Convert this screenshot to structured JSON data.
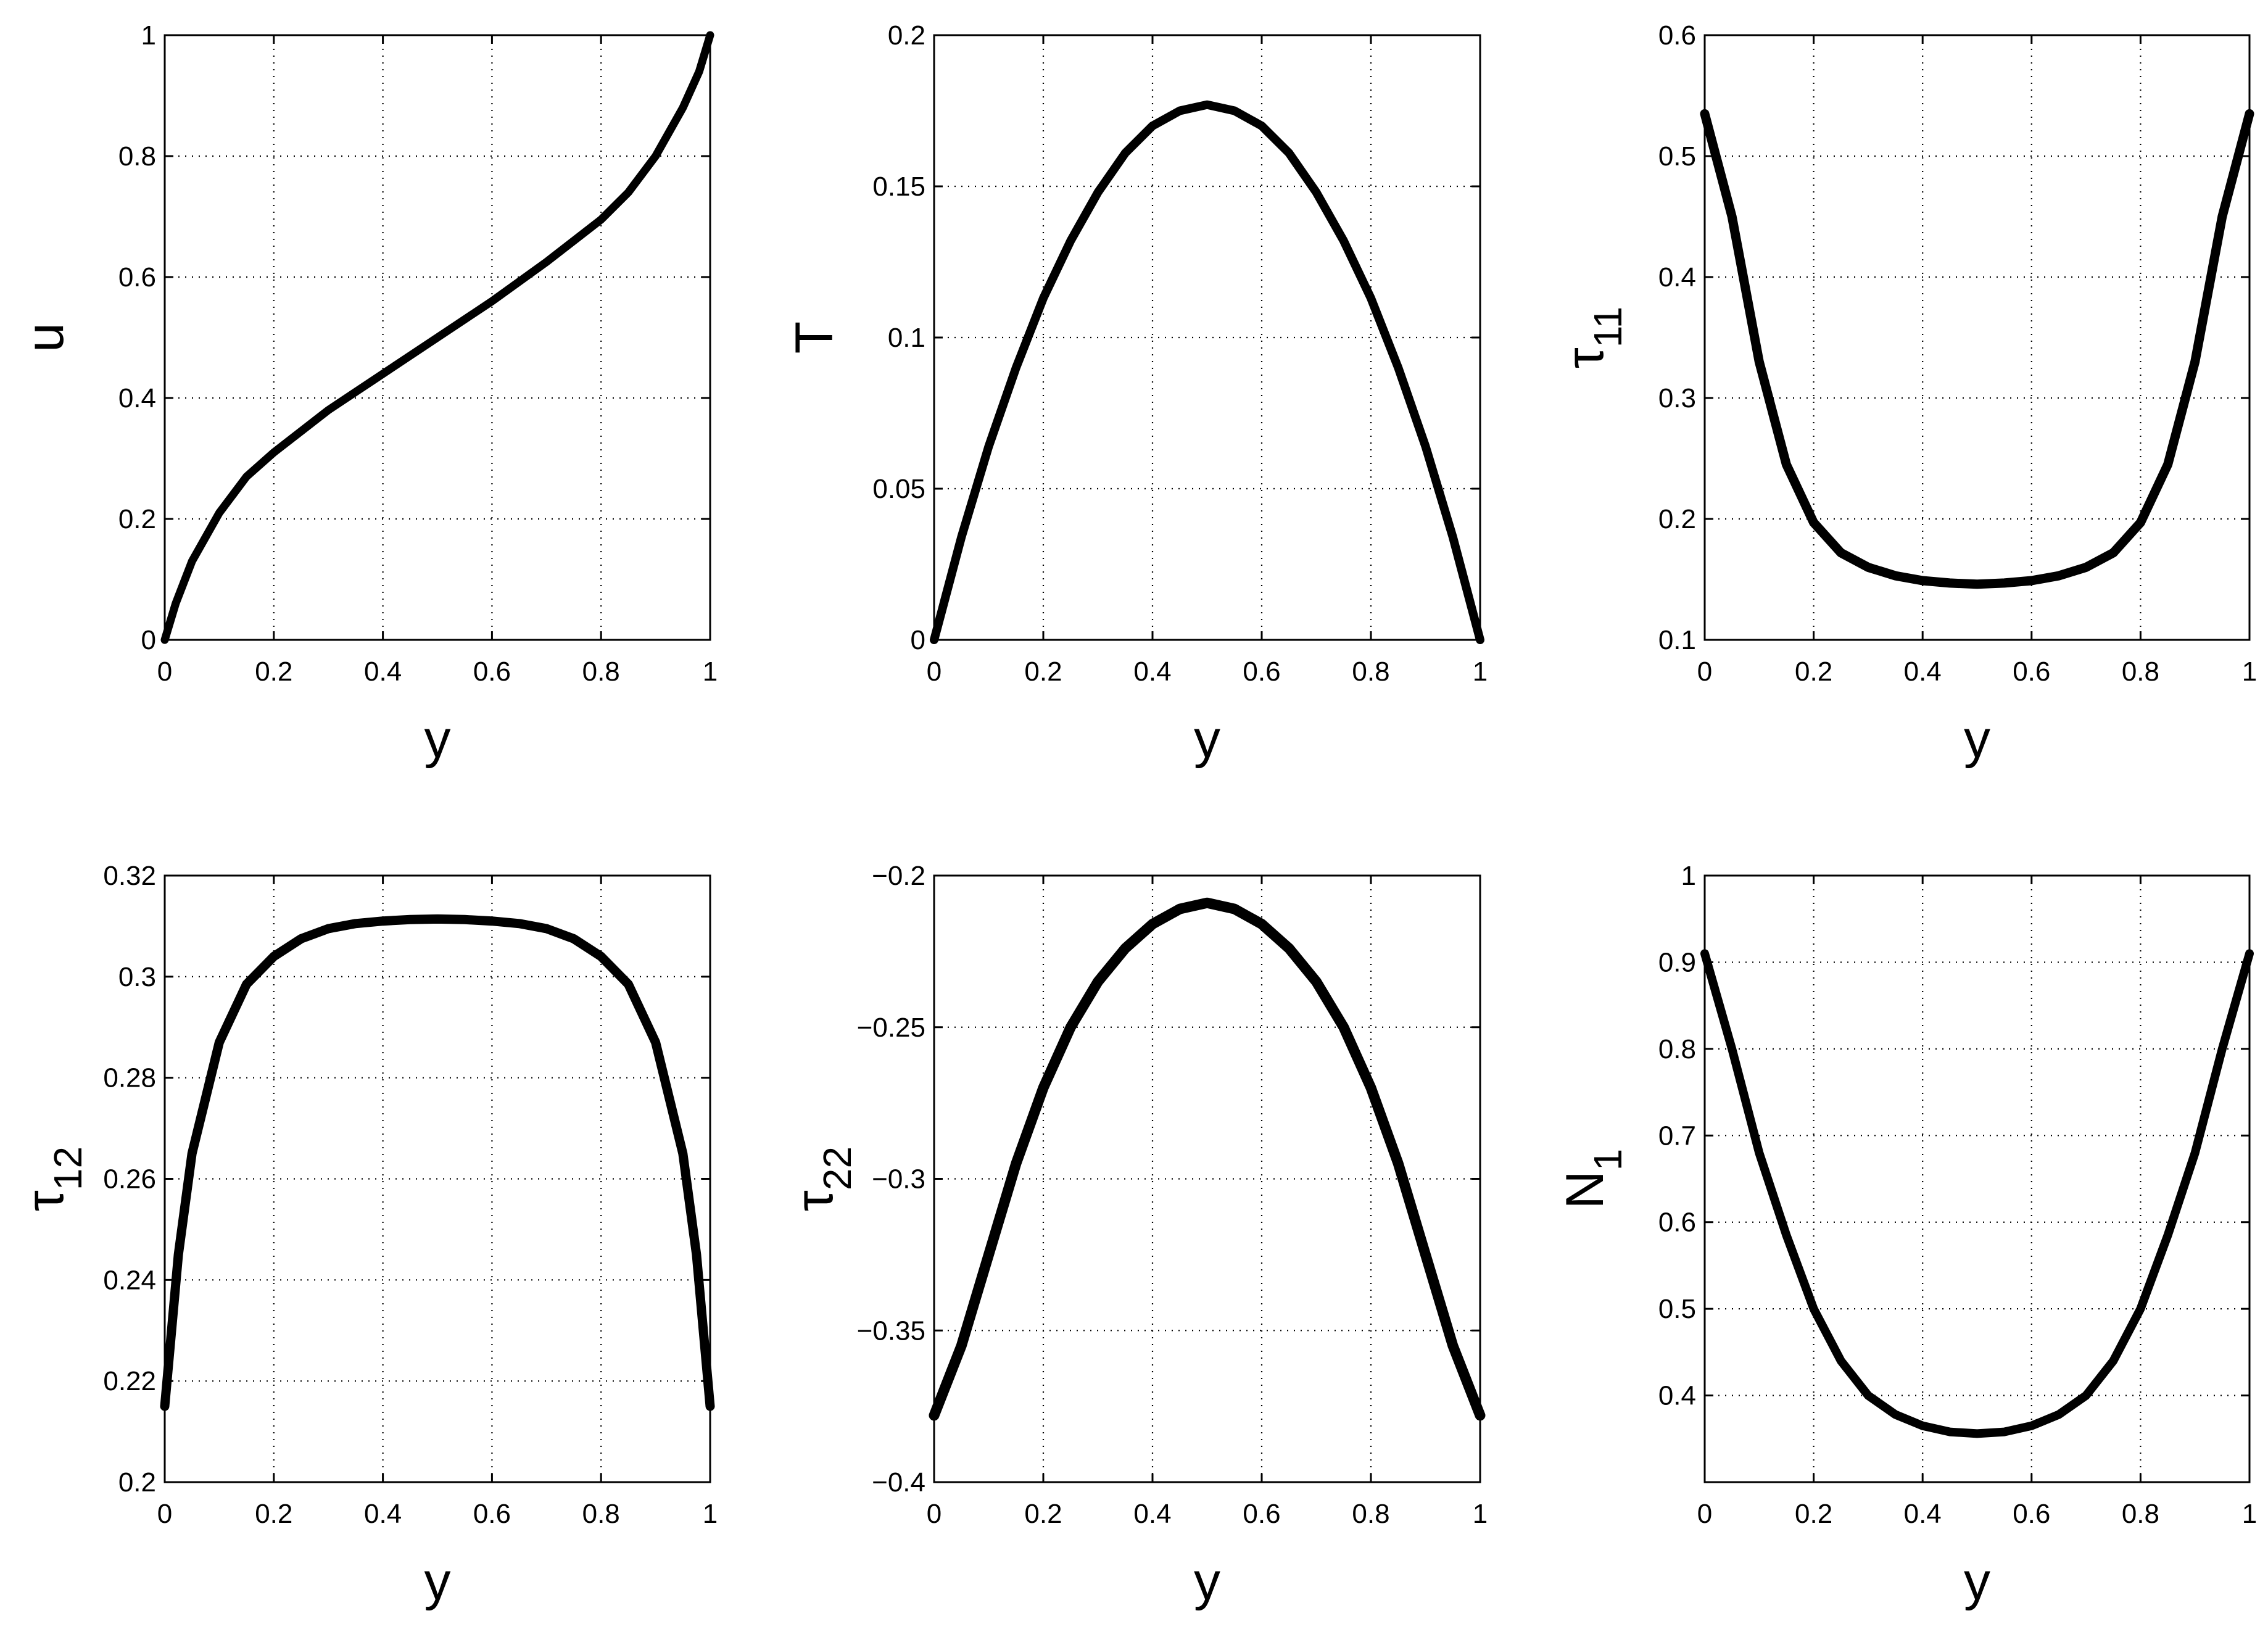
{
  "chart_data": [
    {
      "type": "line",
      "xlabel": "y",
      "ylabel": "u",
      "ylabel_sub": "",
      "xlim": [
        0,
        1
      ],
      "ylim": [
        0,
        1
      ],
      "xticks": [
        0,
        0.2,
        0.4,
        0.6,
        0.8,
        1
      ],
      "xtick_labels": [
        "0",
        "0.2",
        "0.4",
        "0.6",
        "0.8",
        "1"
      ],
      "yticks": [
        0,
        0.2,
        0.4,
        0.6,
        0.8,
        1
      ],
      "ytick_labels": [
        "0",
        "0.2",
        "0.4",
        "0.6",
        "0.8",
        "1"
      ],
      "grid": true,
      "series": [
        {
          "x": [
            0,
            0.02,
            0.05,
            0.1,
            0.15,
            0.2,
            0.3,
            0.4,
            0.5,
            0.6,
            0.7,
            0.8,
            0.85,
            0.9,
            0.95,
            0.98,
            1
          ],
          "y": [
            0,
            0.06,
            0.13,
            0.21,
            0.27,
            0.31,
            0.38,
            0.44,
            0.5,
            0.56,
            0.625,
            0.695,
            0.74,
            0.8,
            0.88,
            0.94,
            1
          ]
        }
      ]
    },
    {
      "type": "line",
      "xlabel": "y",
      "ylabel": "T",
      "ylabel_sub": "",
      "xlim": [
        0,
        1
      ],
      "ylim": [
        0,
        0.2
      ],
      "xticks": [
        0,
        0.2,
        0.4,
        0.6,
        0.8,
        1
      ],
      "xtick_labels": [
        "0",
        "0.2",
        "0.4",
        "0.6",
        "0.8",
        "1"
      ],
      "yticks": [
        0,
        0.05,
        0.1,
        0.15,
        0.2
      ],
      "ytick_labels": [
        "0",
        "0.05",
        "0.1",
        "0.15",
        "0.2"
      ],
      "grid": true,
      "series": [
        {
          "x": [
            0,
            0.05,
            0.1,
            0.15,
            0.2,
            0.25,
            0.3,
            0.35,
            0.4,
            0.45,
            0.5,
            0.55,
            0.6,
            0.65,
            0.7,
            0.75,
            0.8,
            0.85,
            0.9,
            0.95,
            1
          ],
          "y": [
            0,
            0.034,
            0.064,
            0.09,
            0.113,
            0.132,
            0.148,
            0.161,
            0.17,
            0.175,
            0.177,
            0.175,
            0.17,
            0.161,
            0.148,
            0.132,
            0.113,
            0.09,
            0.064,
            0.034,
            0
          ]
        }
      ]
    },
    {
      "type": "line",
      "xlabel": "y",
      "ylabel": "τ",
      "ylabel_sub": "11",
      "xlim": [
        0,
        1
      ],
      "ylim": [
        0.1,
        0.6
      ],
      "xticks": [
        0,
        0.2,
        0.4,
        0.6,
        0.8,
        1
      ],
      "xtick_labels": [
        "0",
        "0.2",
        "0.4",
        "0.6",
        "0.8",
        "1"
      ],
      "yticks": [
        0.1,
        0.2,
        0.3,
        0.4,
        0.5,
        0.6
      ],
      "ytick_labels": [
        "0.1",
        "0.2",
        "0.3",
        "0.4",
        "0.5",
        "0.6"
      ],
      "grid": true,
      "series": [
        {
          "x": [
            0,
            0.05,
            0.1,
            0.15,
            0.2,
            0.25,
            0.3,
            0.35,
            0.4,
            0.45,
            0.5,
            0.55,
            0.6,
            0.65,
            0.7,
            0.75,
            0.8,
            0.85,
            0.9,
            0.95,
            1
          ],
          "y": [
            0.535,
            0.45,
            0.33,
            0.245,
            0.197,
            0.172,
            0.16,
            0.153,
            0.149,
            0.147,
            0.146,
            0.147,
            0.149,
            0.153,
            0.16,
            0.172,
            0.197,
            0.245,
            0.33,
            0.45,
            0.535
          ]
        }
      ]
    },
    {
      "type": "line",
      "xlabel": "y",
      "ylabel": "τ",
      "ylabel_sub": "12",
      "xlim": [
        0,
        1
      ],
      "ylim": [
        0.2,
        0.32
      ],
      "xticks": [
        0,
        0.2,
        0.4,
        0.6,
        0.8,
        1
      ],
      "xtick_labels": [
        "0",
        "0.2",
        "0.4",
        "0.6",
        "0.8",
        "1"
      ],
      "yticks": [
        0.2,
        0.22,
        0.24,
        0.26,
        0.28,
        0.3,
        0.32
      ],
      "ytick_labels": [
        "0.2",
        "0.22",
        "0.24",
        "0.26",
        "0.28",
        "0.3",
        "0.32"
      ],
      "grid": true,
      "series": [
        {
          "x": [
            0,
            0.025,
            0.05,
            0.1,
            0.15,
            0.2,
            0.25,
            0.3,
            0.35,
            0.4,
            0.45,
            0.5,
            0.55,
            0.6,
            0.65,
            0.7,
            0.75,
            0.8,
            0.85,
            0.9,
            0.95,
            0.975,
            1
          ],
          "y": [
            0.215,
            0.245,
            0.265,
            0.287,
            0.2985,
            0.304,
            0.3075,
            0.3095,
            0.3105,
            0.311,
            0.3113,
            0.3114,
            0.3113,
            0.311,
            0.3105,
            0.3095,
            0.3075,
            0.304,
            0.2985,
            0.287,
            0.265,
            0.245,
            0.215
          ]
        }
      ]
    },
    {
      "type": "line",
      "xlabel": "y",
      "ylabel": "τ",
      "ylabel_sub": "22",
      "xlim": [
        0,
        1
      ],
      "ylim": [
        -0.4,
        -0.2
      ],
      "xticks": [
        0,
        0.2,
        0.4,
        0.6,
        0.8,
        1
      ],
      "xtick_labels": [
        "0",
        "0.2",
        "0.4",
        "0.6",
        "0.8",
        "1"
      ],
      "yticks": [
        -0.4,
        -0.35,
        -0.3,
        -0.25,
        -0.2
      ],
      "ytick_labels": [
        "−0.4",
        "−0.35",
        "−0.3",
        "−0.25",
        "−0.2"
      ],
      "grid": true,
      "series": [
        {
          "x": [
            0,
            0.05,
            0.1,
            0.15,
            0.2,
            0.25,
            0.3,
            0.35,
            0.4,
            0.45,
            0.5,
            0.55,
            0.6,
            0.65,
            0.7,
            0.75,
            0.8,
            0.85,
            0.9,
            0.95,
            1
          ],
          "y": [
            -0.378,
            -0.355,
            -0.325,
            -0.295,
            -0.27,
            -0.25,
            -0.235,
            -0.224,
            -0.216,
            -0.211,
            -0.209,
            -0.211,
            -0.216,
            -0.224,
            -0.235,
            -0.25,
            -0.27,
            -0.295,
            -0.325,
            -0.355,
            -0.378
          ]
        }
      ]
    },
    {
      "type": "line",
      "xlabel": "y",
      "ylabel": "N",
      "ylabel_sub": "1",
      "xlim": [
        0,
        1
      ],
      "ylim": [
        0.3,
        1
      ],
      "xticks": [
        0,
        0.2,
        0.4,
        0.6,
        0.8,
        1
      ],
      "xtick_labels": [
        "0",
        "0.2",
        "0.4",
        "0.6",
        "0.8",
        "1"
      ],
      "yticks": [
        0.4,
        0.5,
        0.6,
        0.7,
        0.8,
        0.9,
        1
      ],
      "ytick_labels": [
        "0.4",
        "0.5",
        "0.6",
        "0.7",
        "0.8",
        "0.9",
        "1"
      ],
      "grid": true,
      "series": [
        {
          "x": [
            0,
            0.05,
            0.1,
            0.15,
            0.2,
            0.25,
            0.3,
            0.35,
            0.4,
            0.45,
            0.5,
            0.55,
            0.6,
            0.65,
            0.7,
            0.75,
            0.8,
            0.85,
            0.9,
            0.95,
            1
          ],
          "y": [
            0.91,
            0.8,
            0.68,
            0.585,
            0.5,
            0.44,
            0.4,
            0.378,
            0.365,
            0.358,
            0.356,
            0.358,
            0.365,
            0.378,
            0.4,
            0.44,
            0.5,
            0.585,
            0.68,
            0.8,
            0.91
          ]
        }
      ]
    }
  ]
}
